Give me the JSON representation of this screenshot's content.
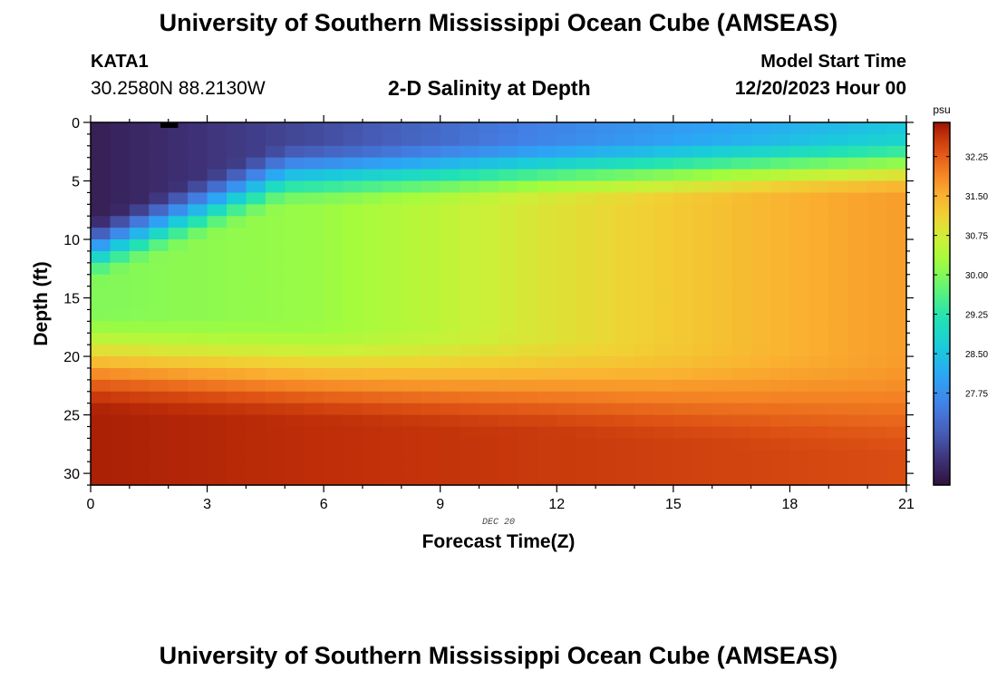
{
  "header": {
    "title": "University of Southern Mississippi Ocean Cube (AMSEAS)",
    "station": "KATA1",
    "coords": "30.2580N  88.2130W",
    "plot_title": "2-D Salinity at Depth",
    "start_label": "Model Start Time",
    "start_value": "12/20/2023 Hour 00"
  },
  "footer": {
    "title": "University of Southern Mississippi Ocean Cube (AMSEAS)"
  },
  "chart_data": {
    "type": "heatmap",
    "title": "2-D Salinity at Depth",
    "xlabel": "Forecast Time(Z)",
    "ylabel": "Depth (ft)",
    "x_ticks": [
      0,
      3,
      6,
      9,
      12,
      15,
      18,
      21
    ],
    "x_tick_labels": [
      "0",
      "3",
      "6",
      "9",
      "12",
      "15",
      "18",
      "21"
    ],
    "xlim": [
      0,
      21
    ],
    "y_ticks": [
      0,
      5,
      10,
      15,
      20,
      25,
      30
    ],
    "y_tick_labels": [
      "0",
      "5",
      "10",
      "15",
      "20",
      "25",
      "30"
    ],
    "ylim": [
      0,
      31
    ],
    "y_inverted": true,
    "date_label": "DEC 20",
    "colorbar": {
      "unit": "psu",
      "min": 26.0,
      "max": 32.9,
      "ticks": [
        27.75,
        28.5,
        29.25,
        30.0,
        30.75,
        31.5,
        32.25
      ],
      "tick_labels": [
        "27.75",
        "28.50",
        "29.25",
        "30.00",
        "30.75",
        "31.50",
        "32.25"
      ]
    },
    "field_model": {
      "surface_salinity_by_hour": [
        [
          0,
          26.2
        ],
        [
          6,
          26.8
        ],
        [
          12,
          27.6
        ],
        [
          21,
          28.6
        ]
      ],
      "bottom_salinity_by_hour": [
        [
          0,
          32.8
        ],
        [
          21,
          32.4
        ]
      ],
      "halocline_depth_ft_by_hour": [
        [
          0,
          11
        ],
        [
          5,
          4.5
        ],
        [
          21,
          3.5
        ]
      ],
      "mid_water_salinity_by_hour": [
        [
          0,
          30.0
        ],
        [
          6,
          30.2
        ],
        [
          12,
          30.9
        ],
        [
          18,
          31.5
        ],
        [
          21,
          31.7
        ]
      ],
      "deep_transition_depth_ft_by_hour": [
        [
          0,
          20
        ],
        [
          12,
          22
        ],
        [
          21,
          24
        ]
      ]
    }
  }
}
